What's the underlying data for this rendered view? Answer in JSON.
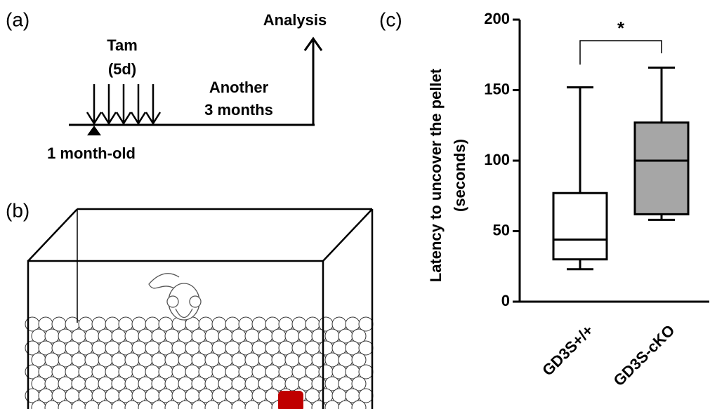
{
  "panel_labels": [
    "(a)",
    "(b)",
    "(c)"
  ],
  "timeline": {
    "treatment": "Tam",
    "duration": "(5d)",
    "end": "Analysis",
    "interval_line1": "Another",
    "interval_line2": "3 months",
    "start": "1 month-old"
  },
  "chart_data": {
    "type": "box",
    "ylabel": [
      "Latency to uncover the pellet",
      "(seconds)"
    ],
    "categories": [
      "GD3S+/+",
      "GD3S-cKO"
    ],
    "boxes": [
      {
        "min": 23,
        "q1": 30,
        "median": 44,
        "q3": 77,
        "max": 152,
        "color": "#ffffff"
      },
      {
        "min": 58,
        "q1": 62,
        "median": 100,
        "q3": 127,
        "max": 166,
        "color": "#a6a6a6"
      }
    ],
    "ylim": [
      0,
      200
    ],
    "yticks": [
      0,
      50,
      100,
      150,
      200
    ],
    "annotation": "*"
  }
}
